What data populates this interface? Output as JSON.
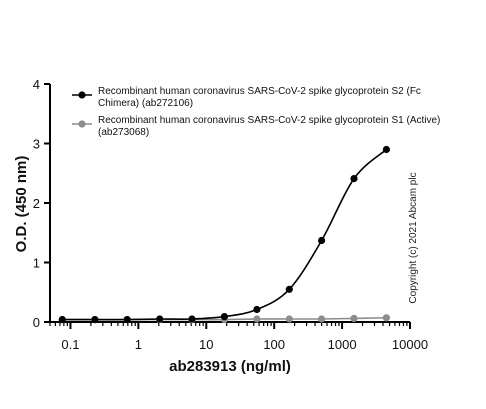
{
  "chart_data": {
    "type": "scatter",
    "title": "",
    "xlabel": "ab283913 (ng/ml)",
    "ylabel": "O.D. (450 nm)",
    "xscale": "log",
    "xlim": [
      0.05,
      10000
    ],
    "ylim": [
      0,
      4
    ],
    "xticks": [
      0.1,
      1,
      10,
      100,
      1000,
      10000
    ],
    "xtick_labels": [
      "0.1",
      "1",
      "10",
      "100",
      "1000",
      "10000"
    ],
    "yticks": [
      0,
      1,
      2,
      3,
      4
    ],
    "ytick_labels": [
      "0",
      "1",
      "2",
      "3",
      "4"
    ],
    "grid": false,
    "legend_position": "top-right",
    "series": [
      {
        "name_lines": [
          "Recombinant human coronavirus SARS-CoV-2 spike glycoprotein S2 (Fc",
          "Chimera) (ab272106)"
        ],
        "color": "#000000",
        "x": [
          0.076,
          0.229,
          0.686,
          2.06,
          6.17,
          18.5,
          55.6,
          167,
          500,
          1500,
          4500
        ],
        "y": [
          0.04,
          0.04,
          0.04,
          0.05,
          0.05,
          0.09,
          0.21,
          0.55,
          1.37,
          2.41,
          2.9
        ],
        "fit_curve": true
      },
      {
        "name_lines": [
          "Recombinant human coronavirus SARS-CoV-2 spike glycoprotein S1 (Active)",
          "(ab273068)"
        ],
        "color": "#8c8c8c",
        "x": [
          0.076,
          0.229,
          0.686,
          2.06,
          6.17,
          18.5,
          55.6,
          167,
          500,
          1500,
          4500
        ],
        "y": [
          0.04,
          0.04,
          0.04,
          0.04,
          0.04,
          0.04,
          0.05,
          0.05,
          0.05,
          0.06,
          0.07
        ],
        "fit_curve": true
      }
    ],
    "annotations": [
      "Copyright (c) 2021 Abcam plc"
    ]
  }
}
